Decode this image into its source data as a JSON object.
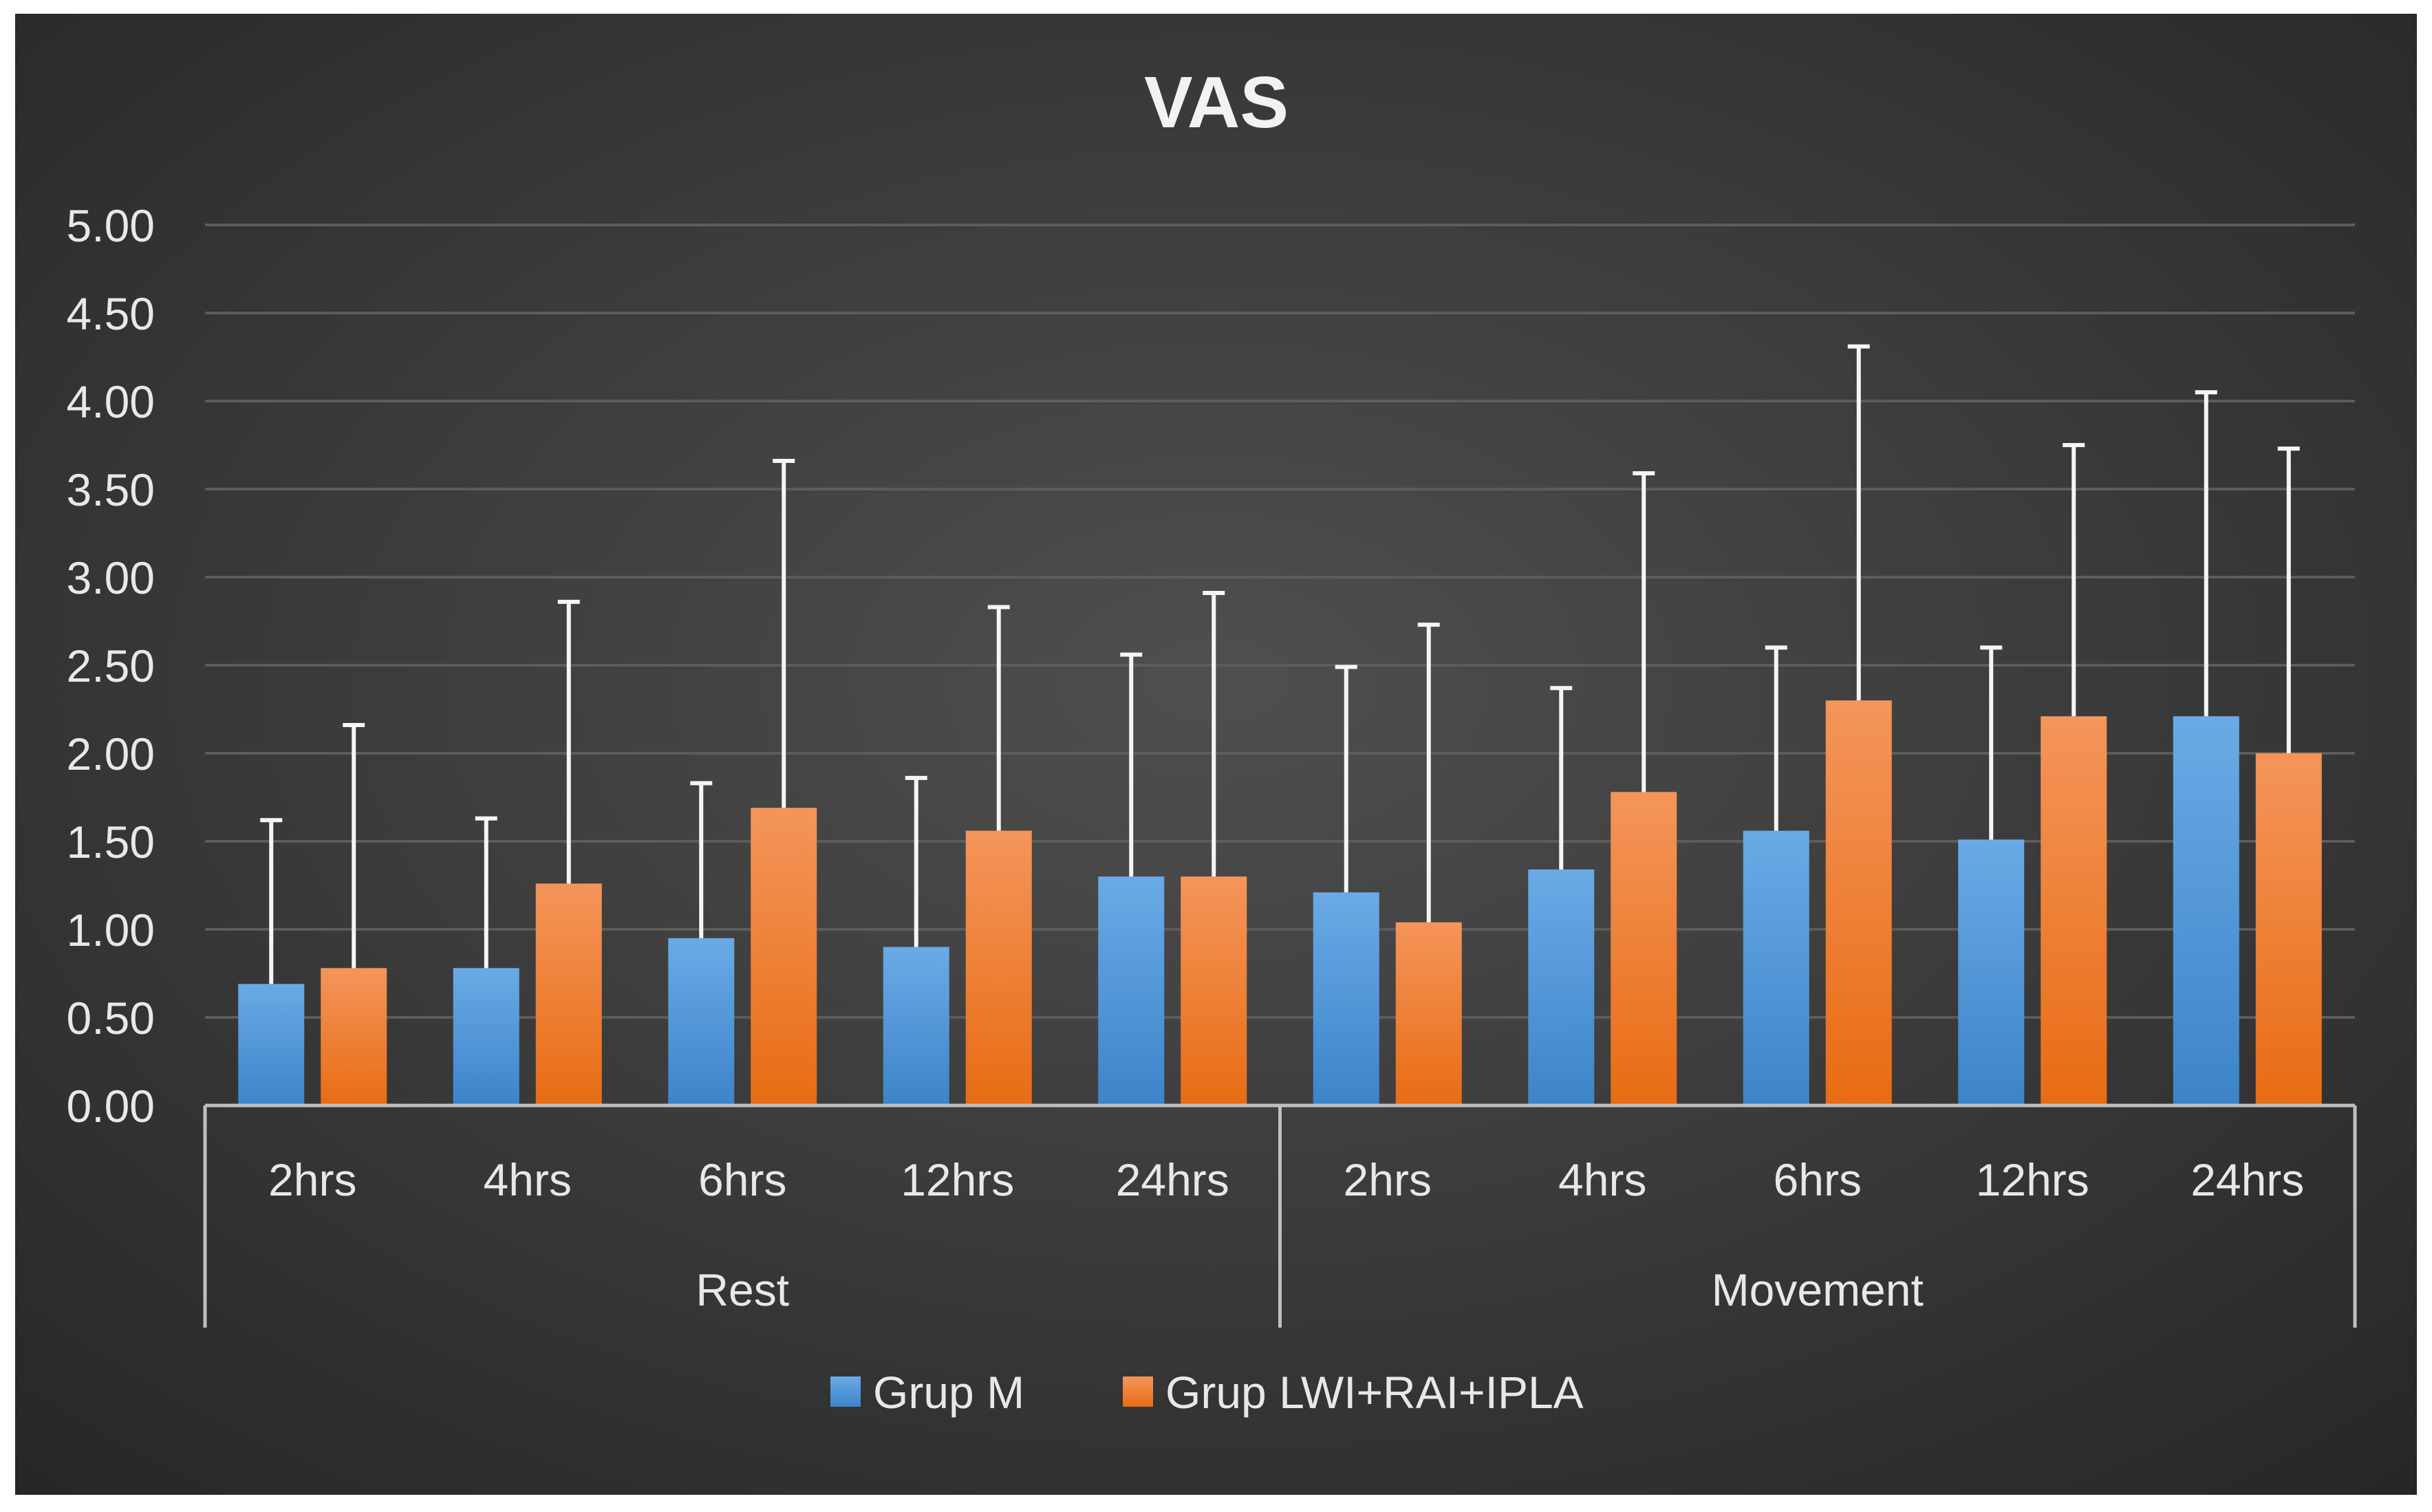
{
  "chart_data": {
    "type": "bar",
    "title": "VAS",
    "xlabel": "",
    "ylabel": "",
    "ylim": [
      0,
      5
    ],
    "yticks": [
      "0.00",
      "0.50",
      "1.00",
      "1.50",
      "2.00",
      "2.50",
      "3.00",
      "3.50",
      "4.00",
      "4.50",
      "5.00"
    ],
    "grid": true,
    "legend_position": "bottom",
    "groups": [
      {
        "label": "Rest",
        "categories": [
          "2hrs",
          "4hrs",
          "6hrs",
          "12hrs",
          "24hrs"
        ]
      },
      {
        "label": "Movement",
        "categories": [
          "2hrs",
          "4hrs",
          "6hrs",
          "12hrs",
          "24hrs"
        ]
      }
    ],
    "series": [
      {
        "name": "Grup M",
        "color": "#4a90d6",
        "values": [
          0.69,
          0.78,
          0.95,
          0.9,
          1.3,
          1.21,
          1.34,
          1.56,
          1.51,
          2.21
        ],
        "error_upper": [
          1.62,
          1.63,
          1.83,
          1.86,
          2.56,
          2.49,
          2.37,
          2.6,
          2.6,
          4.05
        ]
      },
      {
        "name": "Grup LWI+RAI+IPLA",
        "color": "#f07b2a",
        "values": [
          0.78,
          1.26,
          1.69,
          1.56,
          1.3,
          1.04,
          1.78,
          2.3,
          2.21,
          2.0
        ],
        "error_upper": [
          2.16,
          2.86,
          3.66,
          2.83,
          2.91,
          2.73,
          3.59,
          4.31,
          3.75,
          3.73
        ]
      }
    ]
  }
}
